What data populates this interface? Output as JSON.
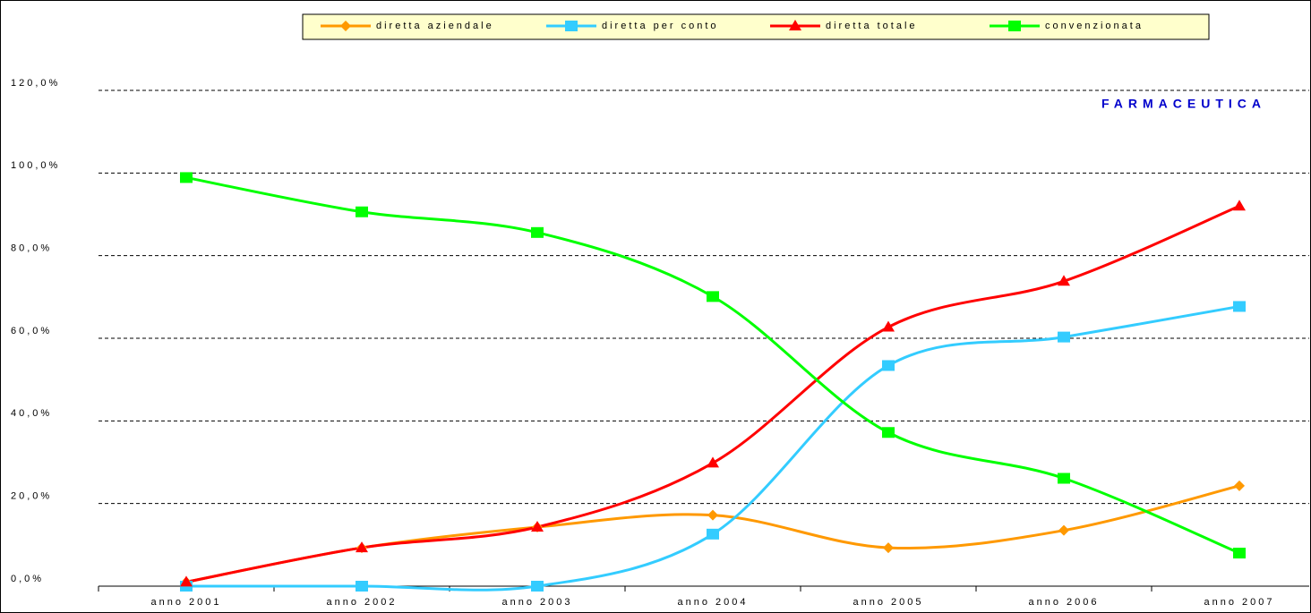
{
  "chart_data": {
    "type": "line",
    "title": "FARMACEUTICA",
    "categories": [
      "anno 2001",
      "anno 2002",
      "anno 2003",
      "anno 2004",
      "anno 2005",
      "anno 2006",
      "anno 2007"
    ],
    "series": [
      {
        "name": "diretta aziendale",
        "color": "#ff9900",
        "marker": "diamond",
        "values": [
          1.0,
          9.3,
          14.3,
          17.2,
          9.3,
          13.5,
          24.3
        ]
      },
      {
        "name": "diretta per conto",
        "color": "#33ccff",
        "marker": "square",
        "values": [
          0.0,
          0.0,
          0.0,
          12.6,
          53.4,
          60.3,
          67.7
        ]
      },
      {
        "name": "diretta totale",
        "color": "#ff0000",
        "marker": "triangle",
        "values": [
          1.0,
          9.3,
          14.3,
          29.8,
          62.7,
          73.8,
          92.0
        ]
      },
      {
        "name": "convenzionata",
        "color": "#00ff00",
        "marker": "square",
        "values": [
          98.9,
          90.6,
          85.6,
          70.1,
          37.2,
          26.1,
          8.0
        ]
      }
    ],
    "ylim": [
      0,
      120
    ],
    "yticks": [
      {
        "value": 0,
        "label": "0,0%"
      },
      {
        "value": 20,
        "label": "20,0%"
      },
      {
        "value": 40,
        "label": "40,0%"
      },
      {
        "value": 60,
        "label": "60,0%"
      },
      {
        "value": 80,
        "label": "80,0%"
      },
      {
        "value": 100,
        "label": "100,0%"
      },
      {
        "value": 120,
        "label": "120,0%"
      }
    ],
    "grid": true,
    "legend": "top"
  }
}
